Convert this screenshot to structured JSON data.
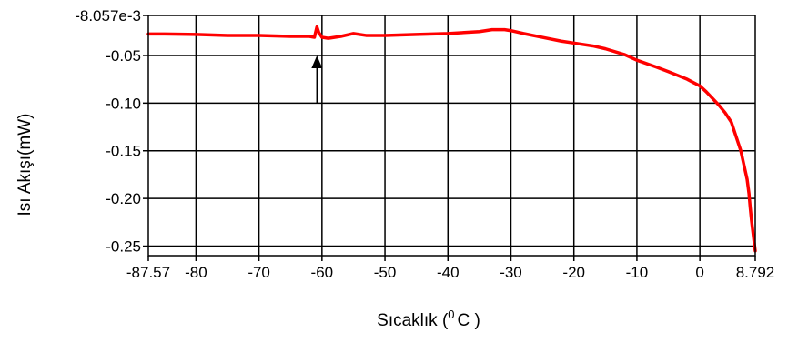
{
  "chart_data": {
    "type": "line",
    "title": "",
    "xlabel": "Sıcaklık (",
    "xlabel_sup": "0",
    "xlabel_unit": "C )",
    "ylabel": "Isı Akışı(mW)",
    "xlim": [
      -87.57,
      8.792
    ],
    "ylim": [
      -0.26,
      -0.008057
    ],
    "x_ticks": [
      -87.57,
      -80,
      -70,
      -60,
      -50,
      -40,
      -30,
      -20,
      -10,
      0,
      8.792
    ],
    "x_tick_labels": [
      "-87.57",
      "-80",
      "-70",
      "-60",
      "-50",
      "-40",
      "-30",
      "-20",
      "-10",
      "0",
      "8.792"
    ],
    "y_ticks": [
      -0.008057,
      -0.05,
      -0.1,
      -0.15,
      -0.2,
      -0.25
    ],
    "y_tick_labels": [
      "-8.057e-3",
      "-0.05",
      "-0.10",
      "-0.15",
      "-0.20",
      "-0.25"
    ],
    "grid": true,
    "line_color": "#ff0000",
    "series": [
      {
        "x": [
          -87.57,
          -85,
          -80,
          -75,
          -70,
          -65,
          -62,
          -61.2,
          -60.8,
          -60.5,
          -60,
          -59,
          -57,
          -55,
          -53,
          -51,
          -50,
          -45,
          -40,
          -35,
          -33,
          -31,
          -30,
          -28,
          -25,
          -22,
          -20,
          -17,
          -15,
          -12,
          -10,
          -7,
          -5,
          -2,
          0,
          1,
          2,
          3,
          4,
          5,
          5.5,
          6,
          6.5,
          7,
          7.5,
          7.8,
          8.0,
          8.2,
          8.4,
          8.6,
          8.792
        ],
        "y": [
          -0.0275,
          -0.0275,
          -0.028,
          -0.029,
          -0.029,
          -0.03,
          -0.03,
          -0.031,
          -0.02,
          -0.026,
          -0.031,
          -0.032,
          -0.03,
          -0.027,
          -0.029,
          -0.029,
          -0.029,
          -0.028,
          -0.027,
          -0.025,
          -0.023,
          -0.023,
          -0.024,
          -0.027,
          -0.031,
          -0.035,
          -0.037,
          -0.04,
          -0.043,
          -0.049,
          -0.055,
          -0.062,
          -0.067,
          -0.075,
          -0.082,
          -0.088,
          -0.095,
          -0.102,
          -0.11,
          -0.12,
          -0.13,
          -0.14,
          -0.15,
          -0.165,
          -0.18,
          -0.195,
          -0.21,
          -0.223,
          -0.234,
          -0.245,
          -0.255
        ]
      }
    ],
    "annotations": [
      {
        "type": "arrow",
        "direction": "up",
        "x": -60.8,
        "y_from": -0.1,
        "y_to": -0.052
      }
    ]
  }
}
